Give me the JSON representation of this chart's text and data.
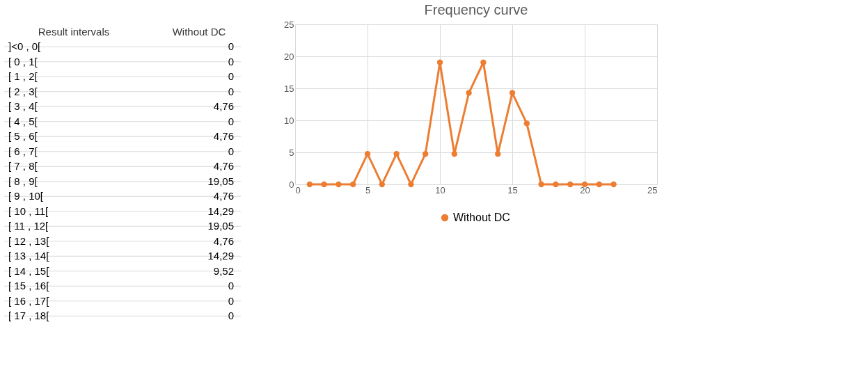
{
  "chart_data": [
    {
      "type": "other",
      "xlabel": "Result intervals",
      "categories": [
        "]<0 , 0[",
        "[ 0 , 1[",
        "[ 1 , 2[",
        "[ 2 , 3[",
        "[ 3 , 4[",
        "[ 4 , 5[",
        "[ 5 , 6[",
        "[ 6 , 7[",
        "[ 7 , 8[",
        "[ 8 , 9[",
        "[ 9 , 10[",
        "[ 10 , 11[",
        "[ 11 , 12[",
        "[ 12 , 13[",
        "[ 13 , 14[",
        "[ 14 , 15[",
        "[ 15 , 16[",
        "[ 16 , 17[",
        "[ 17 , 18["
      ],
      "series": [
        {
          "name": "Without DC",
          "values": [
            0,
            0,
            0,
            0,
            4.76,
            0,
            4.76,
            0,
            4.76,
            19.05,
            4.76,
            14.29,
            19.05,
            4.76,
            14.29,
            9.52,
            0,
            0,
            0
          ],
          "value_labels": [
            "0",
            "0",
            "0",
            "0",
            "4,76",
            "0",
            "4,76",
            "0",
            "4,76",
            "19,05",
            "4,76",
            "14,29",
            "19,05",
            "4,76",
            "14,29",
            "9,52",
            "0",
            "0",
            "0"
          ]
        }
      ]
    },
    {
      "type": "line",
      "title": "Frequency curve",
      "x": [
        1,
        2,
        3,
        4,
        5,
        6,
        7,
        8,
        9,
        10,
        11,
        12,
        13,
        14,
        15,
        16,
        17,
        18,
        19,
        20,
        21,
        22
      ],
      "series": [
        {
          "name": "Without DC",
          "color": "#ed7d31",
          "values": [
            0,
            0,
            0,
            0,
            4.76,
            0,
            4.76,
            0,
            4.76,
            19.05,
            4.76,
            14.29,
            19.05,
            4.76,
            14.29,
            9.52,
            0,
            0,
            0,
            0,
            0,
            0
          ]
        }
      ],
      "xlim": [
        0,
        25
      ],
      "xticks": [
        0,
        5,
        10,
        15,
        20,
        25
      ],
      "ylim": [
        0,
        25
      ],
      "yticks": [
        0,
        5,
        10,
        15,
        20,
        25
      ],
      "grid": true,
      "legend": "bottom",
      "marker": "circle",
      "line_style": "solid"
    }
  ]
}
